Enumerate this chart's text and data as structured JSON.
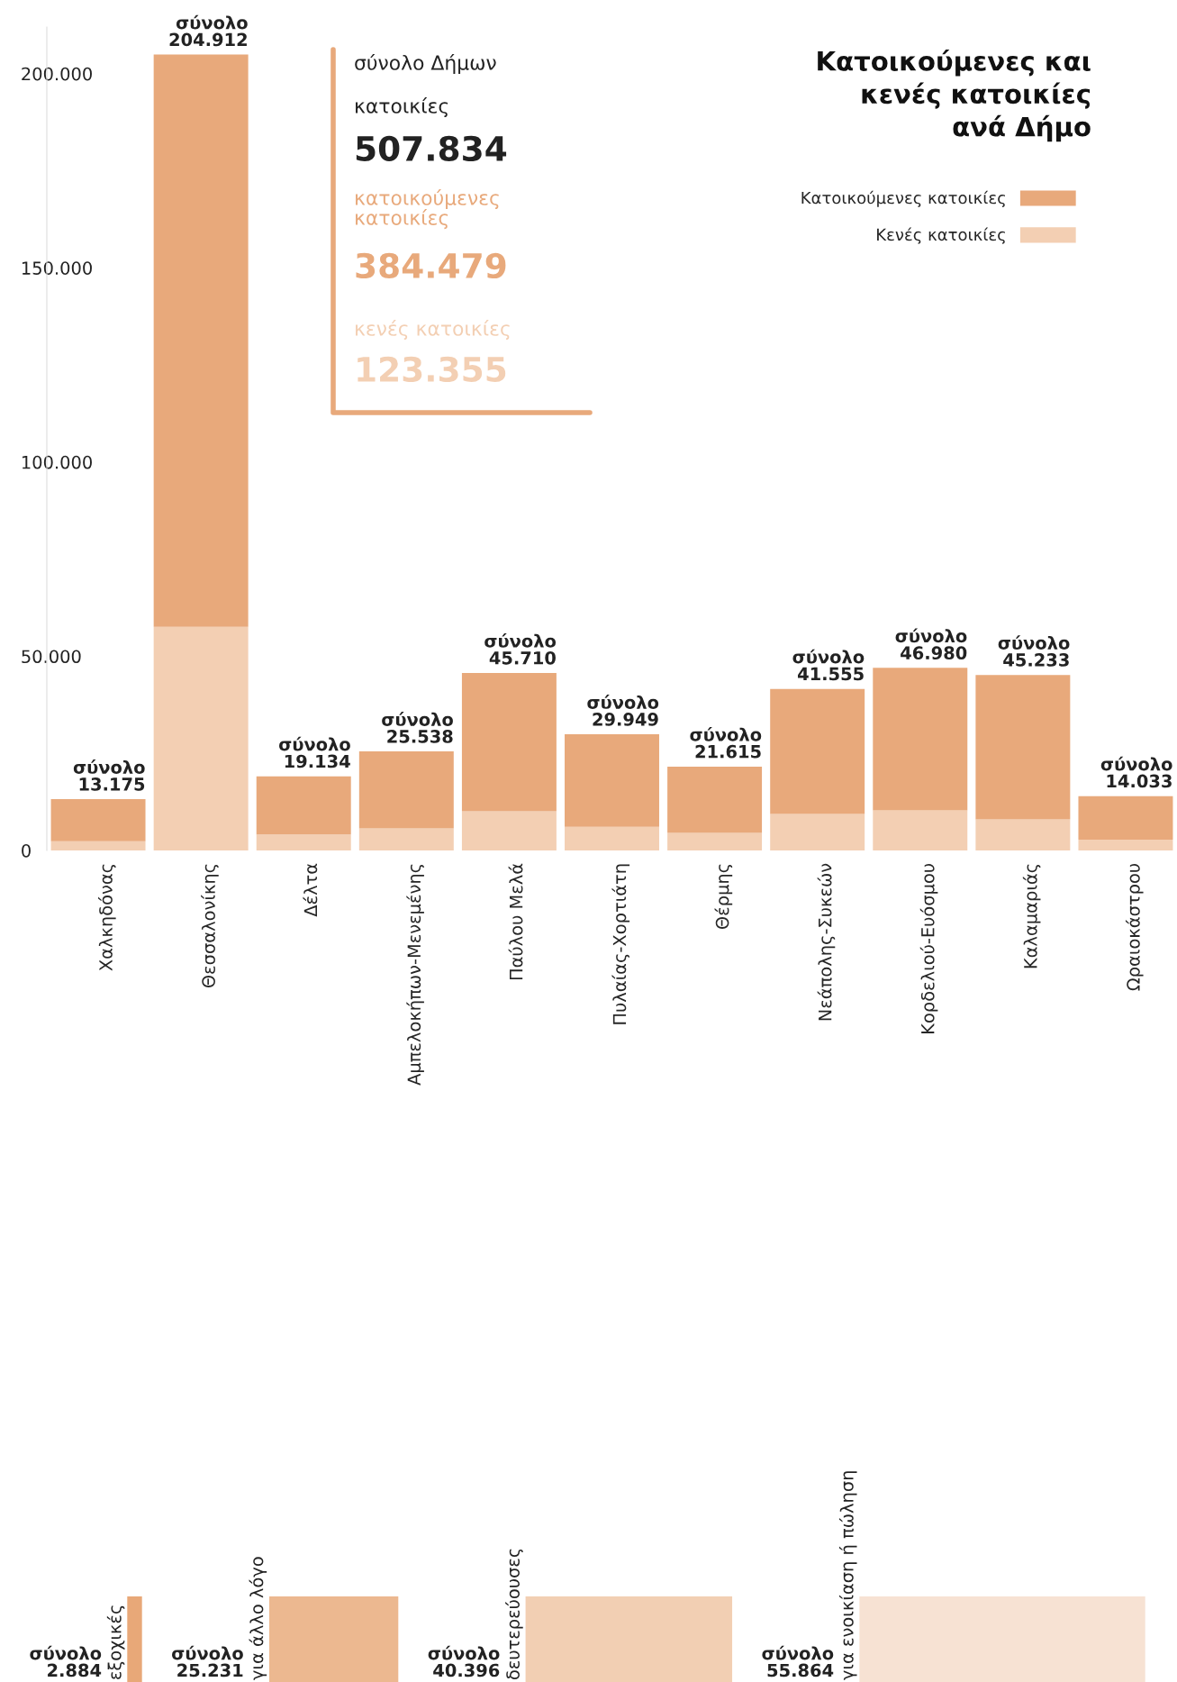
{
  "chart_data": [
    {
      "type": "bar",
      "stacked": true,
      "title": "Κατοικούμενες και\nκενές κατοικίες\nανά Δήμο",
      "categories": [
        "Χαλκηδόνας",
        "Θεσσαλονίκης",
        "Δέλτα",
        "Αμπελοκήπων-Μενεμένης",
        "Παύλου Μελά",
        "Πυλαίας-Χορτιάτη",
        "Θέρμης",
        "Νεάπολης-Συκεών",
        "Κορδελιού-Ευόσμου",
        "Καλαμαριάς",
        "Ωραιοκάστρου"
      ],
      "series": [
        {
          "name": "Κενές κατοικίες",
          "color": "#f3cfb3",
          "values": [
            2400,
            57600,
            4100,
            5700,
            10100,
            6100,
            4500,
            9400,
            10300,
            8000,
            2800
          ]
        },
        {
          "name": "Κατοικούμενες κατοικίες",
          "color": "#e8a97b",
          "values": [
            10800,
            147300,
            15000,
            19800,
            35600,
            23800,
            17100,
            32200,
            36700,
            37200,
            11200
          ]
        }
      ],
      "totals": [
        "σύνολο\n13.175",
        "σύνολο\n204.912",
        "σύνολο\n19.134",
        "σύνολο\n25.538",
        "σύνολο\n45.710",
        "σύνολο\n29.949",
        "σύνολο\n21.615",
        "σύνολο\n41.555",
        "σύνολο\n46.980",
        "σύνολο\n45.233",
        "σύνολο\n14.033"
      ],
      "ylim": [
        0,
        212000
      ],
      "yticks": [
        {
          "value": 0,
          "label": "0"
        },
        {
          "value": 50000,
          "label": "50.000"
        },
        {
          "value": 100000,
          "label": "100.000"
        },
        {
          "value": 150000,
          "label": "150.000"
        },
        {
          "value": 200000,
          "label": "200.000"
        }
      ],
      "grid": false,
      "legend": "top right",
      "annotations": [
        "σύνολο Δήμων",
        "κατοικίες",
        "507.834",
        "κατοικούμενες\nκατοικίες",
        "384.479",
        "κενές κατοικίες",
        "123.355"
      ]
    },
    {
      "type": "other",
      "categories": [
        "εξοχικές",
        "για άλλο λόγο",
        "δευτερεύουσες",
        "για ενοικίαση ή πώληση"
      ],
      "values": [
        2884,
        25231,
        40396,
        55864
      ],
      "colors": [
        "#e8a878",
        "#ecb890",
        "#f2cfb3",
        "#f7e2d3"
      ],
      "value_labels": [
        "σύνολο\n2.884",
        "σύνολο\n25.231",
        "σύνολο\n40.396",
        "σύνολο\n55.864"
      ]
    }
  ]
}
